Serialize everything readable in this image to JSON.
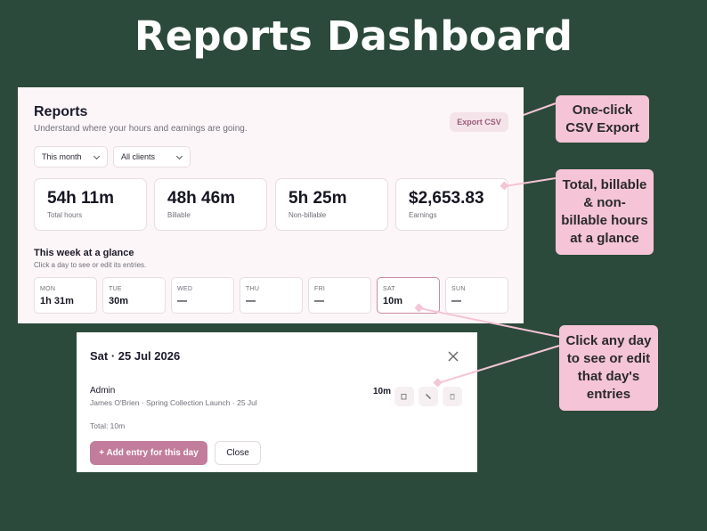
{
  "headline": "Reports Dashboard",
  "reports": {
    "title": "Reports",
    "subtitle": "Understand where your hours and earnings are going.",
    "export_label": "Export CSV",
    "filters": {
      "period": "This month",
      "client": "All clients"
    },
    "stats": [
      {
        "value": "54h 11m",
        "label": "Total hours"
      },
      {
        "value": "48h 46m",
        "label": "Billable"
      },
      {
        "value": "5h 25m",
        "label": "Non-billable"
      },
      {
        "value": "$2,653.83",
        "label": "Earnings"
      }
    ],
    "week": {
      "title": "This week at a glance",
      "subtitle": "Click a day to see or edit its entries.",
      "days": [
        {
          "name": "MON",
          "time": "1h 31m"
        },
        {
          "name": "TUE",
          "time": "30m"
        },
        {
          "name": "WED",
          "time": "—"
        },
        {
          "name": "THU",
          "time": "—"
        },
        {
          "name": "FRI",
          "time": "—"
        },
        {
          "name": "SAT",
          "time": "10m"
        },
        {
          "name": "SUN",
          "time": "—"
        }
      ],
      "selected_day": "SAT"
    }
  },
  "day_modal": {
    "title": "Sat · 25 Jul 2026",
    "entry": {
      "name": "Admin",
      "meta": "James O'Brien · Spring Collection Launch · 25 Jul",
      "duration": "10m",
      "actions": [
        "copy-icon",
        "edit-icon",
        "delete-icon"
      ]
    },
    "total": "Total: 10m",
    "add_label": "+ Add entry for this day",
    "close_label": "Close"
  },
  "callouts": {
    "export": "One-click CSV Export",
    "hours": "Total, billable & non-billable hours at a glance",
    "day": "Click any day to see or edit that day's entries"
  },
  "colors": {
    "background": "#2c4a3b",
    "accent": "#c27d9c",
    "callout": "#f5c4d6"
  }
}
